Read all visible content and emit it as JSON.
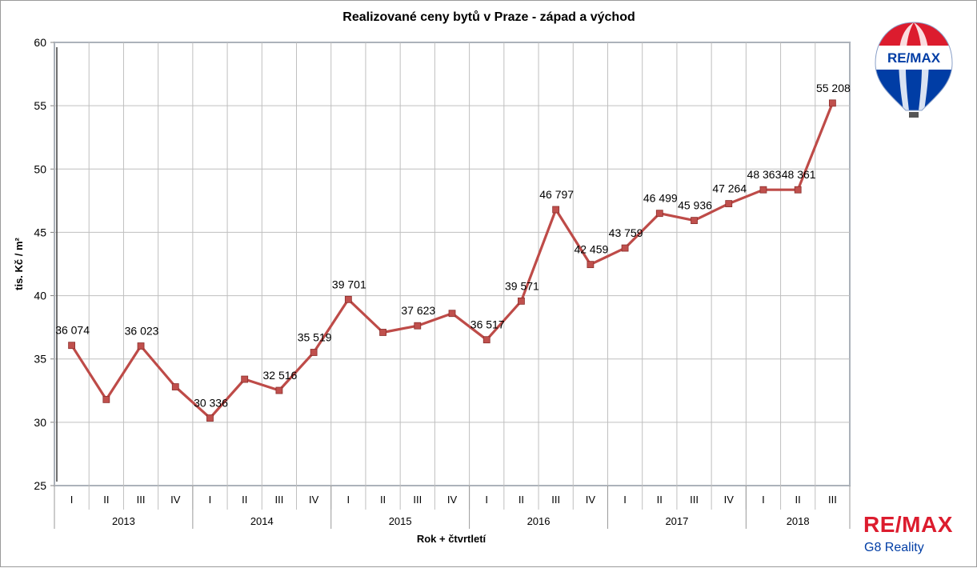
{
  "colors": {
    "series": "#be4b48",
    "marker": "#c0504d",
    "grid": "#bfbfbf",
    "brand_red": "#dc1c2e",
    "brand_blue": "#003da5"
  },
  "brand": {
    "balloon_text": "RE/MAX",
    "logo_text": "RE/MAX",
    "office": "G8 Reality"
  },
  "chart_data": {
    "type": "line",
    "title": "Realizované ceny bytů v Praze - západ a východ",
    "xlabel": "Rok + čtvrtletí",
    "ylabel": "tis. Kč / m²",
    "ylim": [
      25,
      60
    ],
    "yticks": [
      "25",
      "30",
      "35",
      "40",
      "45",
      "50",
      "55",
      "60"
    ],
    "grid": true,
    "legend": "none",
    "categories": [
      "I",
      "II",
      "III",
      "IV",
      "I",
      "II",
      "III",
      "IV",
      "I",
      "II",
      "III",
      "IV",
      "I",
      "II",
      "III",
      "IV",
      "I",
      "II",
      "III",
      "IV",
      "I",
      "II",
      "III"
    ],
    "years": [
      "2013",
      "2014",
      "2015",
      "2016",
      "2017",
      "2018"
    ],
    "series": [
      {
        "values": [
          36.074,
          31.8,
          36.023,
          32.8,
          30.336,
          33.4,
          32.516,
          35.519,
          39.701,
          37.1,
          37.623,
          38.6,
          36.517,
          39.571,
          46.797,
          42.459,
          43.759,
          46.499,
          45.936,
          47.264,
          48.363,
          48.361,
          55.208
        ]
      }
    ],
    "data_labels": [
      "36 074",
      "",
      "36 023",
      "",
      "30 336",
      "",
      "32 516",
      "35 519",
      "39 701",
      "",
      "37 623",
      "",
      "36 517",
      "39 571",
      "46 797",
      "42 459",
      "43 759",
      "46 499",
      "45 936",
      "47 264",
      "48 363",
      "48 361",
      "55 208"
    ]
  }
}
